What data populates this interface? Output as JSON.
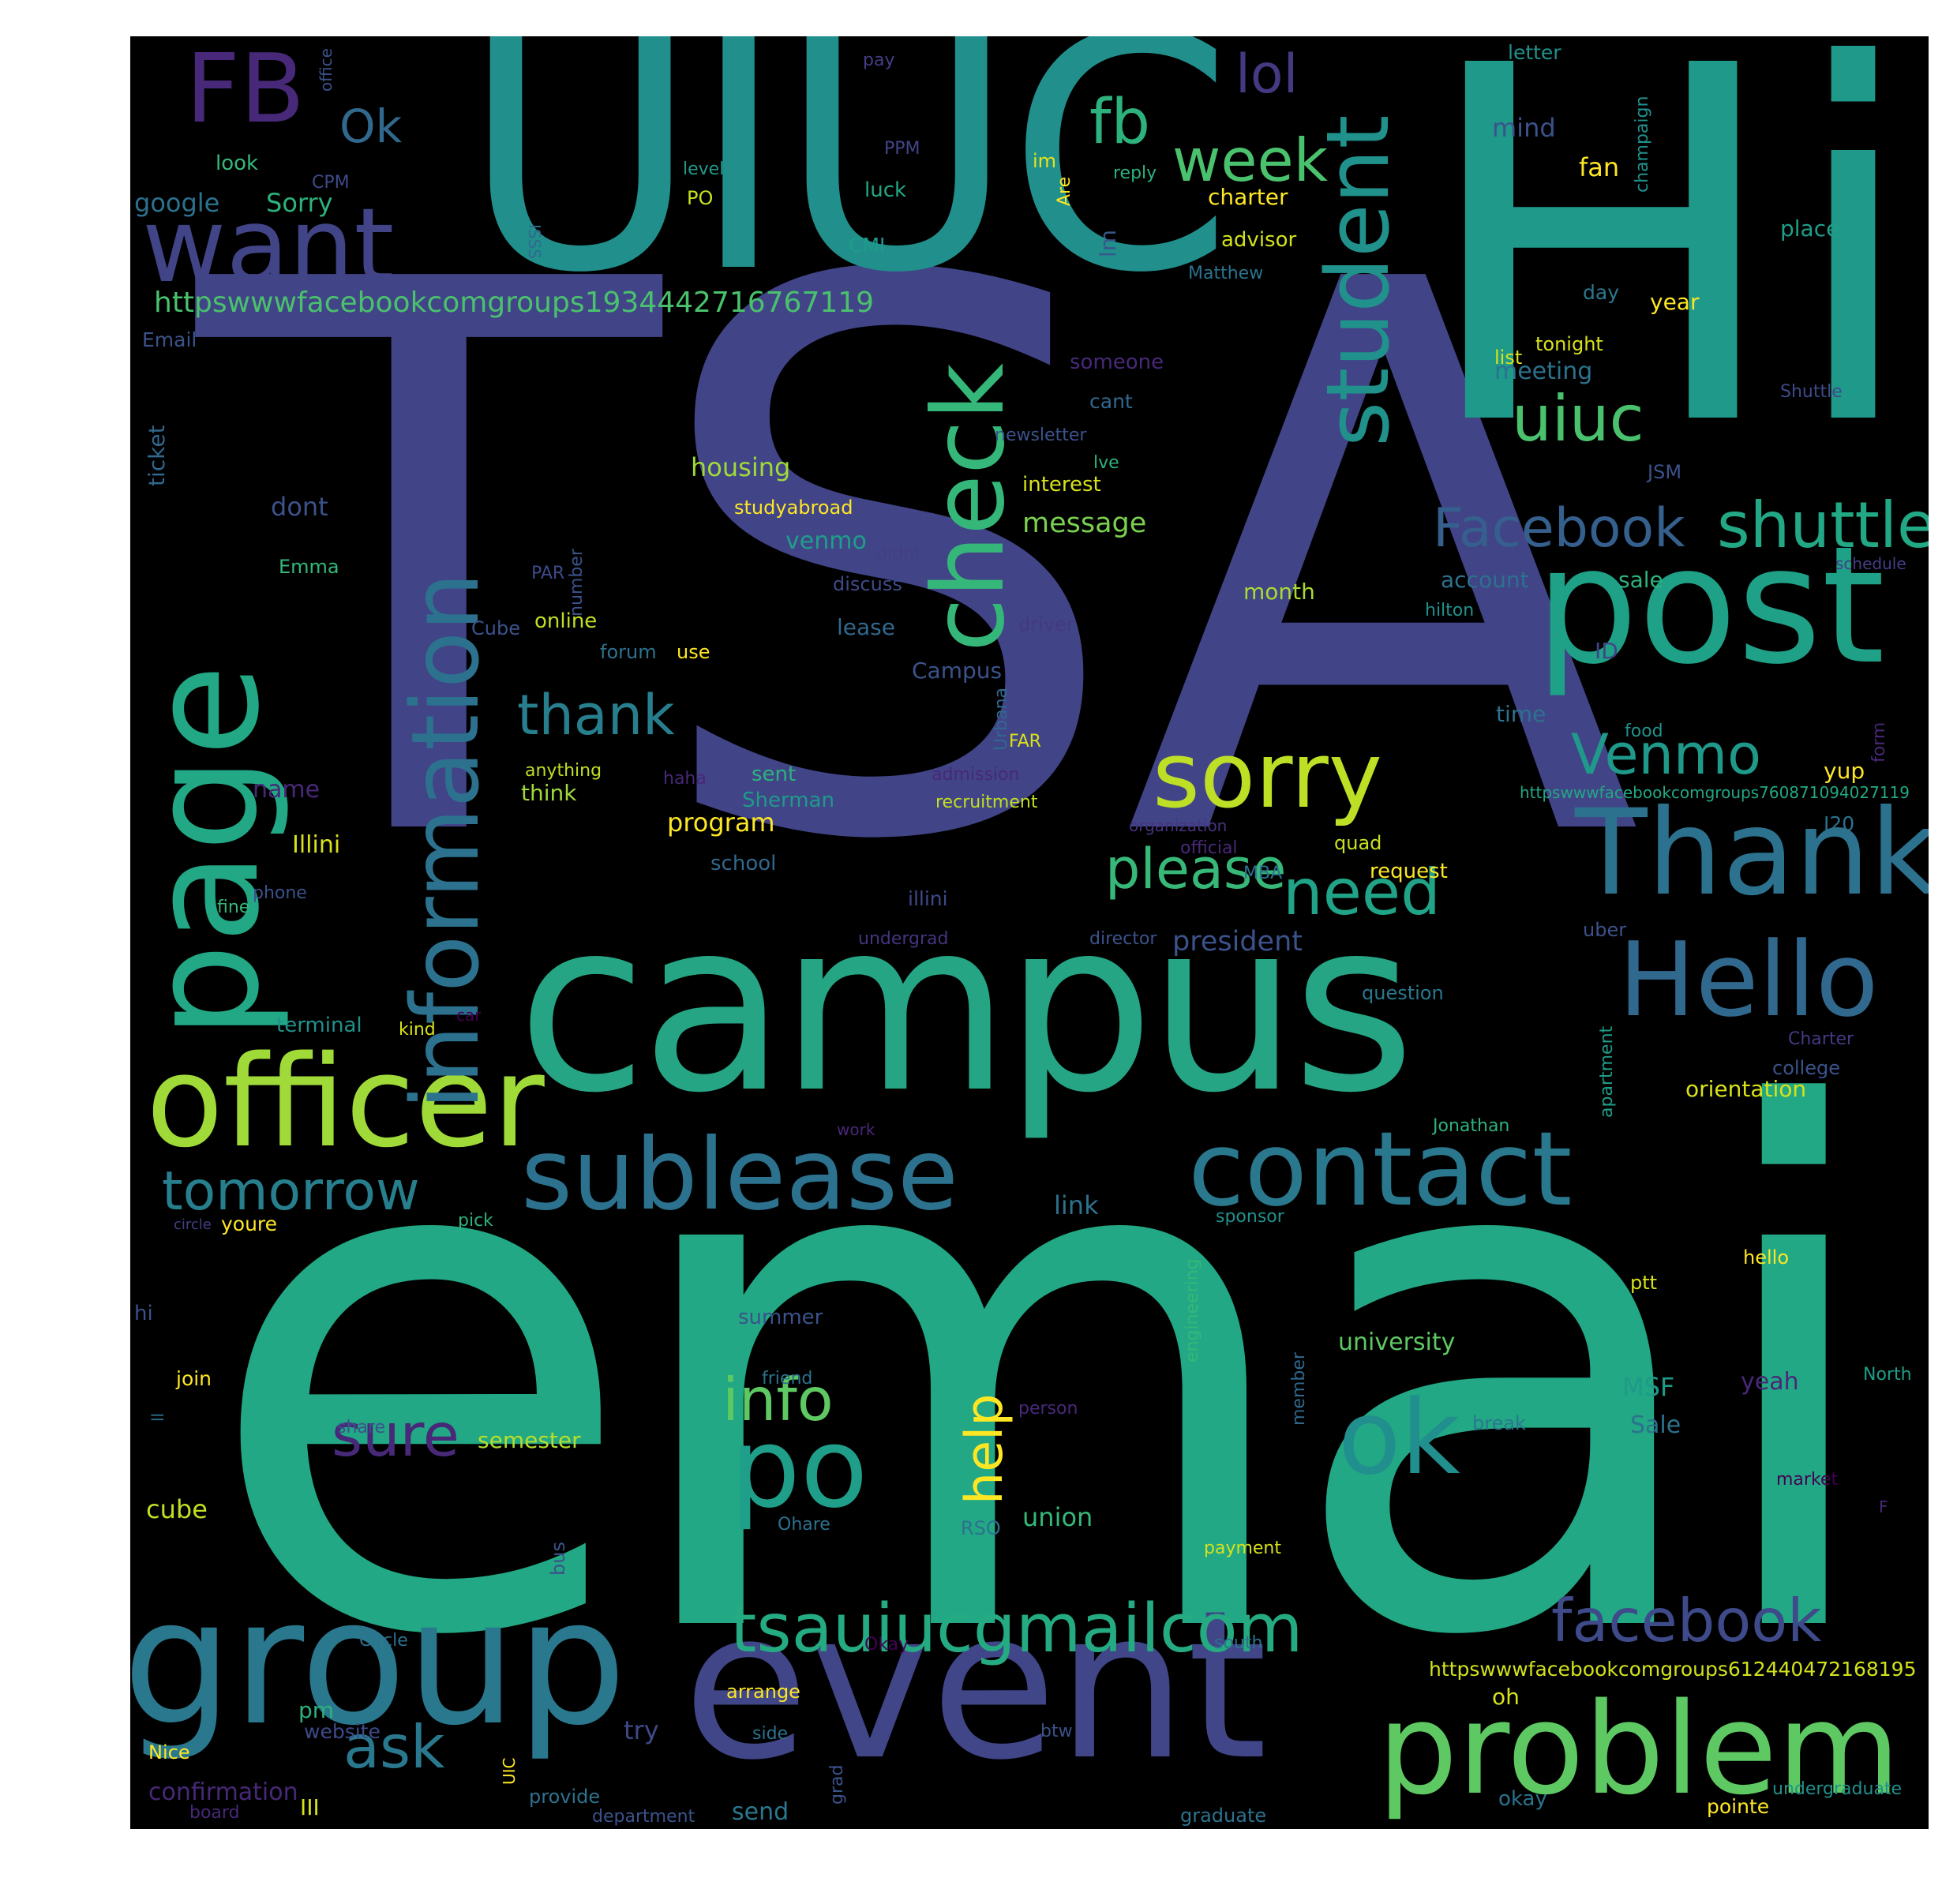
{
  "canvas_background": "#000000",
  "page_background": "#ffffff",
  "words": [
    {
      "text": "TSA",
      "color": "#414487"
    },
    {
      "text": "email",
      "color": "#22a884"
    },
    {
      "text": "Hi",
      "color": "#1f9a8a"
    },
    {
      "text": "UIUC",
      "color": "#21908d"
    },
    {
      "text": "campus",
      "color": "#25a584"
    },
    {
      "text": "event",
      "color": "#404688"
    },
    {
      "text": "group",
      "color": "#2a788e"
    },
    {
      "text": "page",
      "color": "#22a884"
    },
    {
      "text": "post",
      "color": "#1fa187"
    },
    {
      "text": "problem",
      "color": "#5ec962"
    },
    {
      "text": "officer",
      "color": "#a0da39"
    },
    {
      "text": "information",
      "color": "#2c728e"
    },
    {
      "text": "check",
      "color": "#35b779"
    },
    {
      "text": "Thank",
      "color": "#2c728e"
    },
    {
      "text": "contact",
      "color": "#2a788e"
    },
    {
      "text": "sublease",
      "color": "#2c728e"
    },
    {
      "text": "want",
      "color": "#414487"
    },
    {
      "text": "student",
      "color": "#21918c"
    },
    {
      "text": "Hello",
      "color": "#31688e"
    },
    {
      "text": "sorry",
      "color": "#bddf26"
    },
    {
      "text": "ok",
      "color": "#218f8d"
    },
    {
      "text": "po",
      "color": "#1f9e89"
    },
    {
      "text": "tsauiucgmailcom",
      "color": "#25ab82"
    },
    {
      "text": "facebook",
      "color": "#3e4a89"
    },
    {
      "text": "Facebook",
      "color": "#355f8d"
    },
    {
      "text": "shuttle",
      "color": "#22a884"
    },
    {
      "text": "Venmo",
      "color": "#1f9a8a"
    },
    {
      "text": "uiuc",
      "color": "#4ac16d"
    },
    {
      "text": "week",
      "color": "#4ac16d"
    },
    {
      "text": "please",
      "color": "#37b878"
    },
    {
      "text": "need",
      "color": "#20a386"
    },
    {
      "text": "info",
      "color": "#5ec962"
    },
    {
      "text": "FB",
      "color": "#482878"
    },
    {
      "text": "thank",
      "color": "#277f8e"
    },
    {
      "text": "tomorrow",
      "color": "#277f8e"
    },
    {
      "text": "sure",
      "color": "#482878"
    },
    {
      "text": "ask",
      "color": "#2a788e"
    },
    {
      "text": "help",
      "color": "#fde725"
    },
    {
      "text": "fb",
      "color": "#2db27d"
    },
    {
      "text": "lol",
      "color": "#443983"
    },
    {
      "text": "Ok",
      "color": "#31688e"
    },
    {
      "text": "httpswwwfacebookcomgroups1934442716767119",
      "color": "#4ac16d"
    },
    {
      "text": "httpswwwfacebookcomgroups760871094027119",
      "color": "#22a884"
    },
    {
      "text": "httpswwwfacebookcomgroups612440472168195",
      "color": "#d2e21b"
    },
    {
      "text": "housing",
      "color": "#a0da39"
    },
    {
      "text": "message",
      "color": "#7ad151"
    },
    {
      "text": "program",
      "color": "#fde725"
    },
    {
      "text": "orientation",
      "color": "#d8e219"
    },
    {
      "text": "university",
      "color": "#5ec962"
    },
    {
      "text": "union",
      "color": "#35b779"
    },
    {
      "text": "semester",
      "color": "#b5de2b"
    },
    {
      "text": "cube",
      "color": "#c2df23"
    },
    {
      "text": "link",
      "color": "#2c728e"
    },
    {
      "text": "president",
      "color": "#3b528b"
    },
    {
      "text": "venmo",
      "color": "#1f9e89"
    },
    {
      "text": "Sherman",
      "color": "#1f9a8a"
    },
    {
      "text": "month",
      "color": "#a8db34"
    },
    {
      "text": "sale",
      "color": "#2db27d"
    },
    {
      "text": "account",
      "color": "#2c728e"
    },
    {
      "text": "time",
      "color": "#2c728e"
    },
    {
      "text": "year",
      "color": "#fde725"
    },
    {
      "text": "fan",
      "color": "#fde725"
    },
    {
      "text": "letter",
      "color": "#21918c"
    },
    {
      "text": "mind",
      "color": "#3b528b"
    },
    {
      "text": "place",
      "color": "#1f9e89"
    },
    {
      "text": "day",
      "color": "#2a788e"
    },
    {
      "text": "tonight",
      "color": "#d8e219"
    },
    {
      "text": "list",
      "color": "#d8e219"
    },
    {
      "text": "meeting",
      "color": "#2c728e"
    },
    {
      "text": "Shuttle",
      "color": "#3e4a89"
    },
    {
      "text": "JSM",
      "color": "#3b528b"
    },
    {
      "text": "charter",
      "color": "#fde725"
    },
    {
      "text": "advisor",
      "color": "#d2e21b"
    },
    {
      "text": "Matthew",
      "color": "#2c728e"
    },
    {
      "text": "im",
      "color": "#e5e419"
    },
    {
      "text": "Are",
      "color": "#fde725"
    },
    {
      "text": "reply",
      "color": "#2db27d"
    },
    {
      "text": "lm",
      "color": "#38588c"
    },
    {
      "text": "pay",
      "color": "#433e85"
    },
    {
      "text": "PPM",
      "color": "#414487"
    },
    {
      "text": "luck",
      "color": "#22a884"
    },
    {
      "text": "CMI",
      "color": "#1f9a8a"
    },
    {
      "text": "level",
      "color": "#1f9a8a"
    },
    {
      "text": "PO",
      "color": "#c8e020"
    },
    {
      "text": "ISSS",
      "color": "#31688e"
    },
    {
      "text": "office",
      "color": "#3b528b"
    },
    {
      "text": "look",
      "color": "#37b878"
    },
    {
      "text": "CPM",
      "color": "#3e4a89"
    },
    {
      "text": "google",
      "color": "#2c728e"
    },
    {
      "text": "Sorry",
      "color": "#2db27d"
    },
    {
      "text": "Email",
      "color": "#3b528b"
    },
    {
      "text": "someone",
      "color": "#482878"
    },
    {
      "text": "cant",
      "color": "#31688e"
    },
    {
      "text": "newsletter",
      "color": "#3b528b"
    },
    {
      "text": "lve",
      "color": "#2db27d"
    },
    {
      "text": "interest",
      "color": "#d8e219"
    },
    {
      "text": "studyabroad",
      "color": "#fde725"
    },
    {
      "text": "didnt",
      "color": "#433e85"
    },
    {
      "text": "discuss",
      "color": "#3e4a89"
    },
    {
      "text": "lease",
      "color": "#31688e"
    },
    {
      "text": "driver",
      "color": "#443983"
    },
    {
      "text": "Campus",
      "color": "#3b528b"
    },
    {
      "text": "Urbana",
      "color": "#31688e"
    },
    {
      "text": "FAR",
      "color": "#d8e219"
    },
    {
      "text": "admission",
      "color": "#482878"
    },
    {
      "text": "recruitment",
      "color": "#c2df23"
    },
    {
      "text": "organization",
      "color": "#46337f"
    },
    {
      "text": "official",
      "color": "#482878"
    },
    {
      "text": "quad",
      "color": "#c8e020"
    },
    {
      "text": "request",
      "color": "#fde725"
    },
    {
      "text": "MBA",
      "color": "#2c728e"
    },
    {
      "text": "director",
      "color": "#3b528b"
    },
    {
      "text": "question",
      "color": "#2a788e"
    },
    {
      "text": "ticket",
      "color": "#31688e"
    },
    {
      "text": "dont",
      "color": "#3b528b"
    },
    {
      "text": "Emma",
      "color": "#35b779"
    },
    {
      "text": "PAR",
      "color": "#3e4a89"
    },
    {
      "text": "number",
      "color": "#3b528b"
    },
    {
      "text": "online",
      "color": "#c2df23"
    },
    {
      "text": "Cube",
      "color": "#3b528b"
    },
    {
      "text": "forum",
      "color": "#2c728e"
    },
    {
      "text": "use",
      "color": "#fde725"
    },
    {
      "text": "anything",
      "color": "#c2df23"
    },
    {
      "text": "think",
      "color": "#a0da39"
    },
    {
      "text": "haha",
      "color": "#482878"
    },
    {
      "text": "sent",
      "color": "#2db27d"
    },
    {
      "text": "name",
      "color": "#482878"
    },
    {
      "text": "Illini",
      "color": "#d8e219"
    },
    {
      "text": "school",
      "color": "#31688e"
    },
    {
      "text": "phone",
      "color": "#3b528b"
    },
    {
      "text": "fine",
      "color": "#35b779"
    },
    {
      "text": "illini",
      "color": "#3e4a89"
    },
    {
      "text": "undergrad",
      "color": "#46337f"
    },
    {
      "text": "terminal",
      "color": "#21918c"
    },
    {
      "text": "kind",
      "color": "#d8e219"
    },
    {
      "text": "car",
      "color": "#440154"
    },
    {
      "text": "work",
      "color": "#482878"
    },
    {
      "text": "circle",
      "color": "#433e85"
    },
    {
      "text": "youre",
      "color": "#fde725"
    },
    {
      "text": "pick",
      "color": "#2db27d"
    },
    {
      "text": "sponsor",
      "color": "#21918c"
    },
    {
      "text": "Jonathan",
      "color": "#2db27d"
    },
    {
      "text": "apartment",
      "color": "#1f9e89"
    },
    {
      "text": "college",
      "color": "#3b528b"
    },
    {
      "text": "Charter",
      "color": "#443983"
    },
    {
      "text": "uber",
      "color": "#3b528b"
    },
    {
      "text": "ID",
      "color": "#414487"
    },
    {
      "text": "food",
      "color": "#21918c"
    },
    {
      "text": "form",
      "color": "#482878"
    },
    {
      "text": "yup",
      "color": "#fde725"
    },
    {
      "text": "I20",
      "color": "#2c728e"
    },
    {
      "text": "hilton",
      "color": "#21918c"
    },
    {
      "text": "schedule",
      "color": "#433e85"
    },
    {
      "text": "engineering",
      "color": "#35b779"
    },
    {
      "text": "member",
      "color": "#31688e"
    },
    {
      "text": "summer",
      "color": "#3b528b"
    },
    {
      "text": "friend",
      "color": "#2c728e"
    },
    {
      "text": "person",
      "color": "#482878"
    },
    {
      "text": "break",
      "color": "#2a788e"
    },
    {
      "text": "MSF",
      "color": "#1f9a8a"
    },
    {
      "text": "Sale",
      "color": "#2c728e"
    },
    {
      "text": "yeah",
      "color": "#482878"
    },
    {
      "text": "North",
      "color": "#1f9e89"
    },
    {
      "text": "market",
      "color": "#440154"
    },
    {
      "text": "F",
      "color": "#482878"
    },
    {
      "text": "hello",
      "color": "#fde725"
    },
    {
      "text": "ptt",
      "color": "#d8e219"
    },
    {
      "text": "hi",
      "color": "#3b528b"
    },
    {
      "text": "join",
      "color": "#fde725"
    },
    {
      "text": "ll",
      "color": "#2c728e"
    },
    {
      "text": "share",
      "color": "#3b528b"
    },
    {
      "text": "Ohare",
      "color": "#2c728e"
    },
    {
      "text": "RSO",
      "color": "#2c728e"
    },
    {
      "text": "payment",
      "color": "#d8e219"
    },
    {
      "text": "bus",
      "color": "#3b528b"
    },
    {
      "text": "Circle",
      "color": "#2c728e"
    },
    {
      "text": "Okay",
      "color": "#440154"
    },
    {
      "text": "south",
      "color": "#2c728e"
    },
    {
      "text": "arrange",
      "color": "#fde725"
    },
    {
      "text": "side",
      "color": "#2c728e"
    },
    {
      "text": "btw",
      "color": "#3b528b"
    },
    {
      "text": "try",
      "color": "#3e4a89"
    },
    {
      "text": "pm",
      "color": "#2db27d"
    },
    {
      "text": "website",
      "color": "#3e4a89"
    },
    {
      "text": "Nice",
      "color": "#fde725"
    },
    {
      "text": "UIC",
      "color": "#fde725"
    },
    {
      "text": "confirmation",
      "color": "#482878"
    },
    {
      "text": "board",
      "color": "#482878"
    },
    {
      "text": "III",
      "color": "#d8e219"
    },
    {
      "text": "provide",
      "color": "#2c728e"
    },
    {
      "text": "department",
      "color": "#3b528b"
    },
    {
      "text": "send",
      "color": "#2a788e"
    },
    {
      "text": "grad",
      "color": "#3b528b"
    },
    {
      "text": "oh",
      "color": "#d8e219"
    },
    {
      "text": "graduate",
      "color": "#2c728e"
    },
    {
      "text": "okay",
      "color": "#2c728e"
    },
    {
      "text": "pointe",
      "color": "#fde725"
    },
    {
      "text": "undergraduate",
      "color": "#21918c"
    },
    {
      "text": "champaign",
      "color": "#21918c"
    }
  ]
}
